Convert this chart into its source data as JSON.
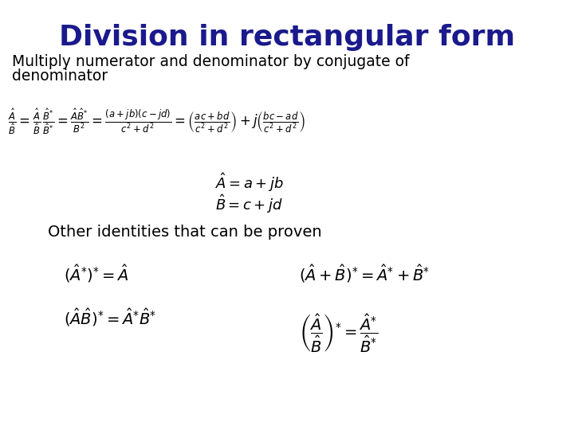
{
  "title": "Division in rectangular form",
  "title_color": "#1a1a8c",
  "title_fontsize": 26,
  "bg_color": "#ffffff",
  "text_color": "#000000",
  "subtitle_line1": "Multiply numerator and denominator by conjugate of",
  "subtitle_line2": "denominator",
  "subtitle_fontsize": 13.5,
  "eq_fontsize": 12,
  "def_fontsize": 13,
  "other_label": "Other identities that can be proven",
  "other_fontsize": 14
}
